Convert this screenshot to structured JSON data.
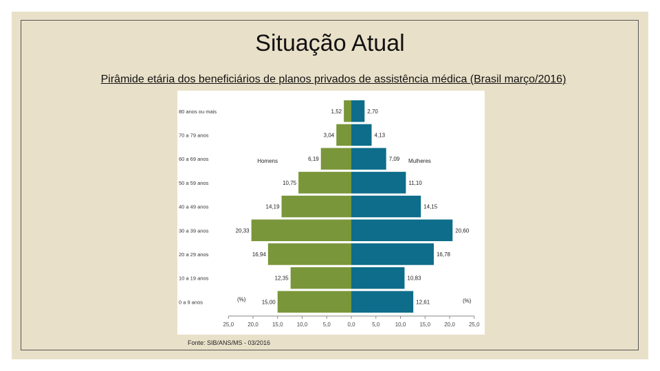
{
  "slide": {
    "title": "Situação Atual",
    "subtitle": "Pirâmide etária dos beneficiários de planos privados de assistência médica (Brasil março/2016)",
    "source": "Fonte: SIB/ANS/MS - 03/2016"
  },
  "colors": {
    "homens": "#7a963a",
    "mulheres": "#0d6d8a",
    "background": "#e9e0c9"
  },
  "chart_data": {
    "type": "bar",
    "orientation": "horizontal-pyramid",
    "categories": [
      "0 a 9 anos",
      "10 a 19 anos",
      "20 a 29 anos",
      "30 a 39 anos",
      "40 a 49 anos",
      "50 a 59 anos",
      "60 a 69 anos",
      "70 a 79 anos",
      "80 anos ou mais"
    ],
    "series": [
      {
        "name": "Homens",
        "values": [
          15.0,
          12.35,
          16.94,
          20.33,
          14.19,
          10.75,
          6.19,
          3.04,
          1.52
        ],
        "labels": [
          "15,00",
          "12,35",
          "16,94",
          "20,33",
          "14,19",
          "10,75",
          "6,19",
          "3,04",
          "1,52"
        ]
      },
      {
        "name": "Mulheres",
        "values": [
          12.61,
          10.83,
          16.78,
          20.6,
          14.15,
          11.1,
          7.09,
          4.13,
          2.7
        ],
        "labels": [
          "12,61",
          "10,83",
          "16,78",
          "20,60",
          "14,15",
          "11,10",
          "7,09",
          "4,13",
          "2,70"
        ]
      }
    ],
    "xlim": [
      -25,
      25
    ],
    "xticks": [
      "25,0",
      "20,0",
      "15,0",
      "10,0",
      "5,0",
      "0,0",
      "5,0",
      "10,0",
      "15,0",
      "20,0",
      "25,0"
    ],
    "unit_label_left": "(%)",
    "unit_label_right": "(%)"
  }
}
